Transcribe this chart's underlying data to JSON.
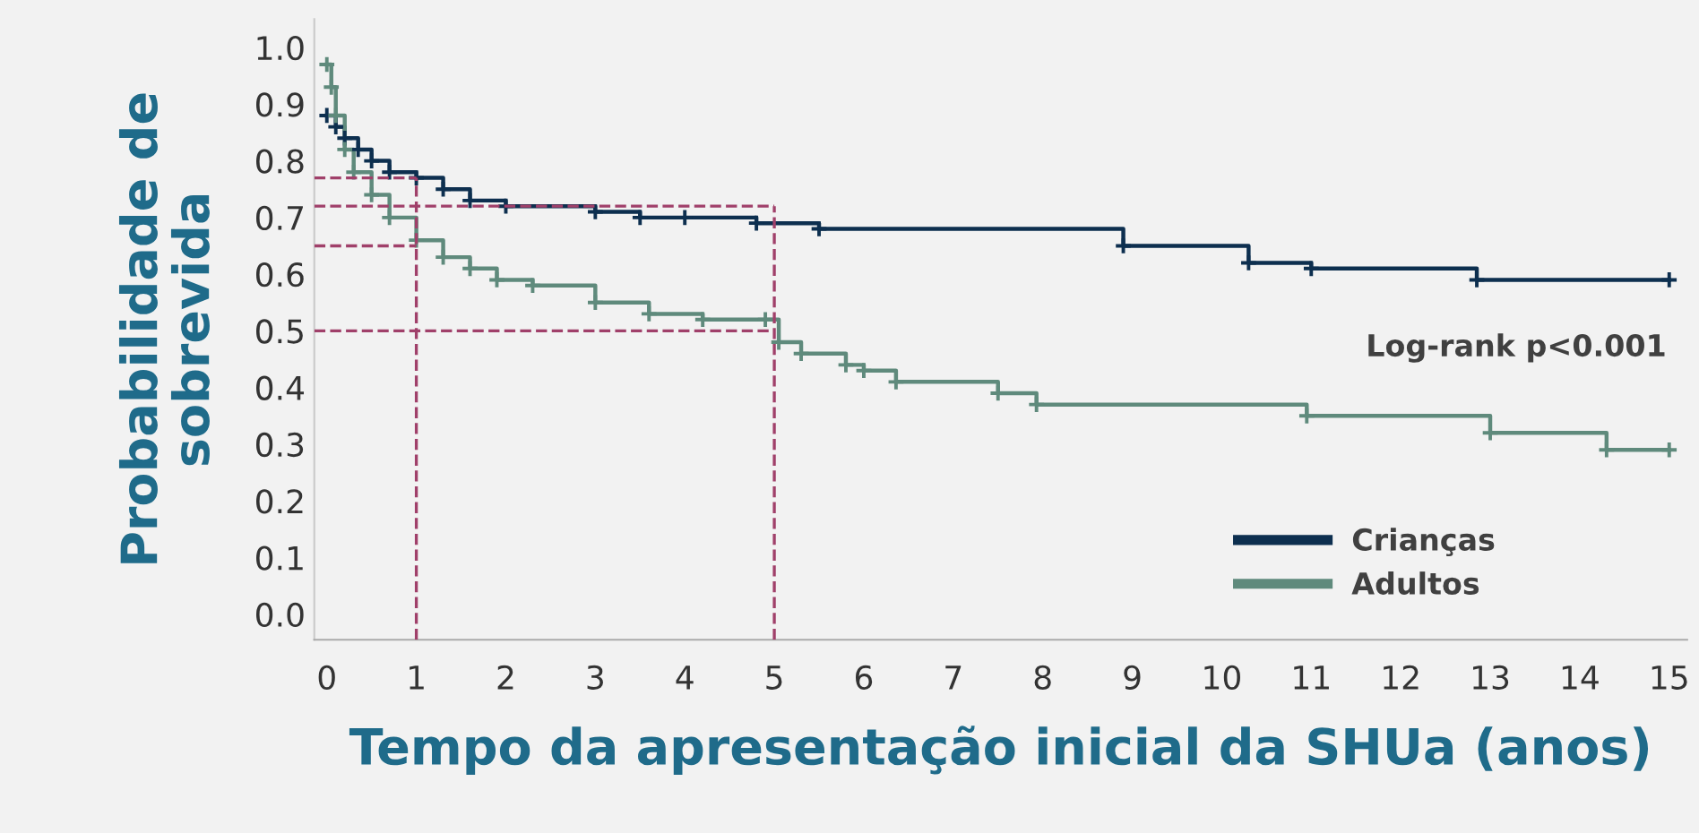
{
  "chart_data": {
    "type": "step",
    "xlabel": "Tempo da apresentação inicial da SHUa (anos)",
    "ylabel": "Probabilidade de\nsobrevida",
    "annotations": [
      "Log-rank p<0.001"
    ],
    "series": [
      {
        "name": "Crianças",
        "color": "#0d2f4f",
        "x": [
          0,
          0.1,
          0.2,
          0.35,
          0.5,
          0.7,
          1.0,
          1.3,
          1.6,
          2.0,
          3.0,
          3.5,
          4.0,
          4.8,
          5.5,
          8.9,
          10.3,
          11.0,
          12.85,
          15
        ],
        "values": [
          0.88,
          0.86,
          0.84,
          0.82,
          0.8,
          0.78,
          0.77,
          0.75,
          0.73,
          0.72,
          0.71,
          0.7,
          0.7,
          0.69,
          0.68,
          0.65,
          0.62,
          0.61,
          0.59,
          0.59
        ]
      },
      {
        "name": "Adultos",
        "color": "#5f8a7c",
        "x": [
          0,
          0.05,
          0.1,
          0.2,
          0.3,
          0.5,
          0.7,
          1.0,
          1.3,
          1.6,
          1.9,
          2.3,
          3.0,
          3.6,
          4.2,
          4.9,
          5.05,
          5.3,
          5.8,
          6.0,
          6.36,
          7.5,
          7.93,
          10.95,
          13.0,
          14.3,
          15
        ],
        "values": [
          0.97,
          0.93,
          0.88,
          0.82,
          0.78,
          0.74,
          0.7,
          0.66,
          0.63,
          0.61,
          0.59,
          0.58,
          0.55,
          0.53,
          0.52,
          0.52,
          0.48,
          0.46,
          0.44,
          0.43,
          0.41,
          0.39,
          0.37,
          0.35,
          0.32,
          0.29,
          0.29
        ]
      },
      {
        "type": "line",
        "color": "#a0406a",
        "line_style": "dashed",
        "marker": "none",
        "x": [
          -0.14,
          1
        ],
        "values": [
          0.77,
          0.77
        ]
      },
      {
        "type": "line",
        "color": "#a0406a",
        "line_style": "dashed",
        "marker": "none",
        "x": [
          -0.14,
          1
        ],
        "values": [
          0.65,
          0.65
        ]
      }
    ],
    "ref_lines": [
      {
        "axis": "y",
        "value": 0.72,
        "color": "#a0406a",
        "line_style": "dashed"
      },
      {
        "axis": "y",
        "value": 0.5,
        "color": "#a0406a",
        "line_style": "dashed"
      },
      {
        "axis": "x",
        "value": 1,
        "color": "#a0406a",
        "line_style": "dashed"
      },
      {
        "axis": "x",
        "value": 5,
        "color": "#a0406a",
        "line_style": "dashed"
      }
    ],
    "xlim": [
      -0.14,
      15.2
    ],
    "ylim": [
      -0.045,
      1.05
    ],
    "xticks": [
      0,
      1,
      2,
      3,
      4,
      5,
      6,
      7,
      8,
      9,
      10,
      11,
      12,
      13,
      14,
      15
    ],
    "yticks": [
      {
        "value": 0,
        "label": "0.0"
      },
      {
        "value": 0.1,
        "label": "0.1"
      },
      {
        "value": 0.2,
        "label": "0.2"
      },
      {
        "value": 0.3,
        "label": "0.3"
      },
      {
        "value": 0.4,
        "label": "0.4"
      },
      {
        "value": 0.5,
        "label": "0.5"
      },
      {
        "value": 0.6,
        "label": "0.6"
      },
      {
        "value": 0.7,
        "label": "0.7"
      },
      {
        "value": 0.8,
        "label": "0.8"
      },
      {
        "value": 0.9,
        "label": "0.9"
      },
      {
        "value": 1,
        "label": "1.0"
      }
    ],
    "grid": false,
    "legend": "bottom right",
    "marker": "cross",
    "line_style": "solid"
  }
}
